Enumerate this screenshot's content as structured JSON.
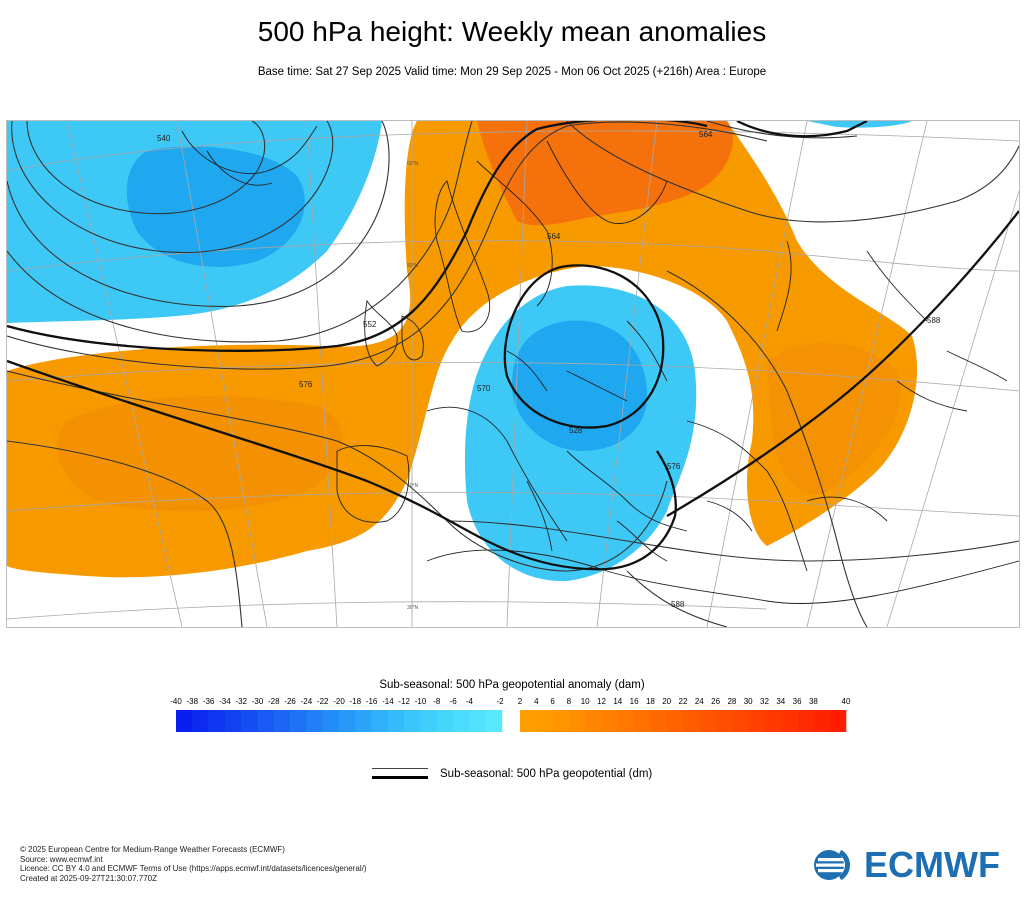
{
  "title": "500 hPa height: Weekly mean anomalies",
  "subtitle": "Base time: Sat 27 Sep 2025 Valid time: Mon 29 Sep 2025 - Mon 06 Oct 2025 (+216h) Area : Europe",
  "map": {
    "contour_labels": [
      "552",
      "540",
      "564",
      "576",
      "576",
      "564",
      "588",
      "588",
      "528",
      "570"
    ],
    "latitude_labels": [
      "60°N",
      "50°N",
      "40°N",
      "30°N"
    ]
  },
  "colorbar": {
    "title": "Sub-seasonal: 500 hPa geopotential anomaly (dam)",
    "tick_labels": [
      "-40",
      "-38",
      "-36",
      "-34",
      "-32",
      "-30",
      "-28",
      "-26",
      "-24",
      "-22",
      "-20",
      "-18",
      "-16",
      "-14",
      "-12",
      "-10",
      "-8",
      "-6",
      "-4",
      "-2",
      "2",
      "4",
      "6",
      "8",
      "10",
      "12",
      "14",
      "16",
      "18",
      "20",
      "22",
      "24",
      "26",
      "28",
      "30",
      "32",
      "34",
      "36",
      "38",
      "40"
    ],
    "negative_colors": [
      "#0a1ef0",
      "#0c2af0",
      "#0f36f0",
      "#1242f0",
      "#154ef0",
      "#185af2",
      "#1b66f3",
      "#1e72f4",
      "#2180f5",
      "#248cf6",
      "#2898f7",
      "#2ca4f8",
      "#30b0f9",
      "#35bcfa",
      "#3ac6fb",
      "#40cffc",
      "#46d6fc",
      "#4cdcfd",
      "#53e2fd",
      "#5ae8fe"
    ],
    "positive_colors": [
      "#ffa000",
      "#ff9a00",
      "#ff9400",
      "#ff8d00",
      "#ff8600",
      "#ff7f00",
      "#ff7800",
      "#ff7100",
      "#ff6a00",
      "#ff6300",
      "#ff5c00",
      "#ff5500",
      "#ff4e00",
      "#ff4700",
      "#ff4000",
      "#ff3900",
      "#ff3200",
      "#ff2b00",
      "#ff2400",
      "#ff1d00"
    ]
  },
  "legend": {
    "contour_label": "Sub-seasonal: 500 hPa geopotential (dm)"
  },
  "footer": {
    "line1": "© 2025 European Centre for Medium-Range Weather Forecasts (ECMWF)",
    "line2": "Source: www.ecmwf.int",
    "line3": "Licence: CC BY 4.0 and ECMWF Terms of Use (https://apps.ecmwf.int/datasets/licences/general/)",
    "line4": "Created at 2025-09-27T21:30:07.770Z"
  },
  "logo": {
    "text": "ECMWF",
    "color": "#1d6fb2"
  },
  "colors": {
    "anomaly_negative": "#3ec8f6",
    "anomaly_negative_core": "#1fa7ef",
    "anomaly_positive": "#f79a00",
    "anomaly_positive_core": "#f56a0d"
  }
}
